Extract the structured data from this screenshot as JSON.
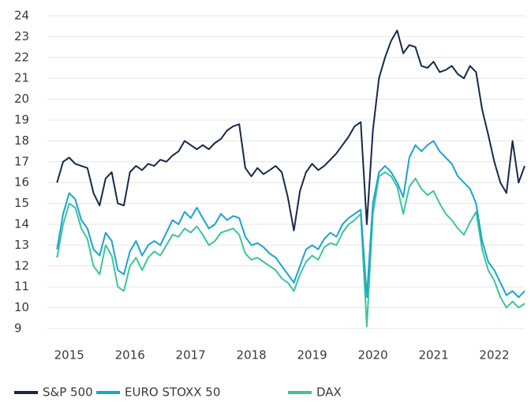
{
  "chart_data": {
    "type": "line",
    "x": [
      2014.8,
      2014.9,
      2015.0,
      2015.1,
      2015.2,
      2015.3,
      2015.4,
      2015.5,
      2015.6,
      2015.7,
      2015.8,
      2015.9,
      2016.0,
      2016.1,
      2016.2,
      2016.3,
      2016.4,
      2016.5,
      2016.6,
      2016.7,
      2016.8,
      2016.9,
      2017.0,
      2017.1,
      2017.2,
      2017.3,
      2017.4,
      2017.5,
      2017.6,
      2017.7,
      2017.8,
      2017.9,
      2018.0,
      2018.1,
      2018.2,
      2018.3,
      2018.4,
      2018.5,
      2018.6,
      2018.7,
      2018.8,
      2018.9,
      2019.0,
      2019.1,
      2019.2,
      2019.3,
      2019.4,
      2019.5,
      2019.6,
      2019.7,
      2019.8,
      2019.9,
      2020.0,
      2020.1,
      2020.2,
      2020.3,
      2020.4,
      2020.5,
      2020.6,
      2020.7,
      2020.8,
      2020.9,
      2021.0,
      2021.1,
      2021.2,
      2021.3,
      2021.4,
      2021.5,
      2021.6,
      2021.7,
      2021.8,
      2021.9,
      2022.0,
      2022.1,
      2022.2,
      2022.3,
      2022.4,
      2022.5
    ],
    "series": [
      {
        "name": "S&P 500",
        "color": "#17294a",
        "values": [
          16.0,
          17.0,
          17.2,
          16.9,
          16.8,
          16.7,
          15.5,
          14.9,
          16.2,
          16.5,
          15.0,
          14.9,
          16.5,
          16.8,
          16.6,
          16.9,
          16.8,
          17.1,
          17.0,
          17.3,
          17.5,
          18.0,
          17.8,
          17.6,
          17.8,
          17.6,
          17.9,
          18.1,
          18.5,
          18.7,
          18.8,
          16.7,
          16.3,
          16.7,
          16.4,
          16.6,
          16.8,
          16.5,
          15.3,
          13.7,
          15.6,
          16.5,
          16.9,
          16.6,
          16.8,
          17.1,
          17.4,
          17.8,
          18.2,
          18.7,
          18.9,
          14.0,
          18.5,
          21.0,
          22.0,
          22.8,
          23.3,
          22.2,
          22.6,
          22.5,
          21.6,
          21.5,
          21.8,
          21.3,
          21.4,
          21.6,
          21.2,
          21.0,
          21.6,
          21.3,
          19.5,
          18.3,
          17.0,
          16.0,
          15.5,
          18.0,
          16.0,
          16.8
        ]
      },
      {
        "name": "EURO STOXX 50",
        "color": "#1ba3d1",
        "values": [
          12.8,
          14.5,
          15.5,
          15.2,
          14.2,
          13.8,
          12.8,
          12.5,
          13.6,
          13.2,
          11.8,
          11.6,
          12.7,
          13.2,
          12.5,
          13.0,
          13.2,
          13.0,
          13.6,
          14.2,
          14.0,
          14.6,
          14.3,
          14.8,
          14.3,
          13.8,
          14.0,
          14.5,
          14.2,
          14.4,
          14.3,
          13.4,
          13.0,
          13.1,
          12.9,
          12.6,
          12.4,
          12.0,
          11.6,
          11.2,
          12.0,
          12.8,
          13.0,
          12.8,
          13.3,
          13.6,
          13.4,
          14.0,
          14.3,
          14.5,
          14.7,
          10.5,
          15.0,
          16.5,
          16.8,
          16.5,
          16.0,
          15.3,
          17.2,
          17.8,
          17.5,
          17.8,
          18.0,
          17.5,
          17.2,
          16.9,
          16.3,
          16.0,
          15.7,
          15.0,
          13.2,
          12.2,
          11.8,
          11.2,
          10.6,
          10.8,
          10.5,
          10.8
        ]
      },
      {
        "name": "DAX",
        "color": "#3cc59a",
        "values": [
          12.4,
          14.0,
          15.0,
          14.8,
          13.8,
          13.3,
          12.0,
          11.6,
          13.0,
          12.5,
          11.0,
          10.8,
          12.0,
          12.4,
          11.8,
          12.4,
          12.7,
          12.5,
          13.0,
          13.5,
          13.4,
          13.8,
          13.6,
          13.9,
          13.5,
          13.0,
          13.2,
          13.6,
          13.7,
          13.8,
          13.5,
          12.6,
          12.3,
          12.4,
          12.2,
          12.0,
          11.8,
          11.4,
          11.2,
          10.8,
          11.6,
          12.2,
          12.5,
          12.3,
          12.9,
          13.1,
          13.0,
          13.6,
          14.0,
          14.2,
          14.5,
          9.1,
          14.5,
          16.3,
          16.5,
          16.3,
          15.8,
          14.5,
          15.8,
          16.2,
          15.7,
          15.4,
          15.6,
          15.0,
          14.5,
          14.2,
          13.8,
          13.5,
          14.1,
          14.6,
          12.8,
          11.8,
          11.3,
          10.5,
          10.0,
          10.3,
          10.0,
          10.2
        ]
      }
    ],
    "xlim": [
      2014.64,
      2022.5
    ],
    "xticks": [
      2015,
      2016,
      2017,
      2018,
      2019,
      2020,
      2021,
      2022
    ],
    "ylim": [
      9,
      24
    ],
    "yticks": [
      9,
      10,
      11,
      12,
      13,
      14,
      15,
      16,
      17,
      18,
      19,
      20,
      21,
      22,
      23,
      24
    ],
    "grid": true
  }
}
